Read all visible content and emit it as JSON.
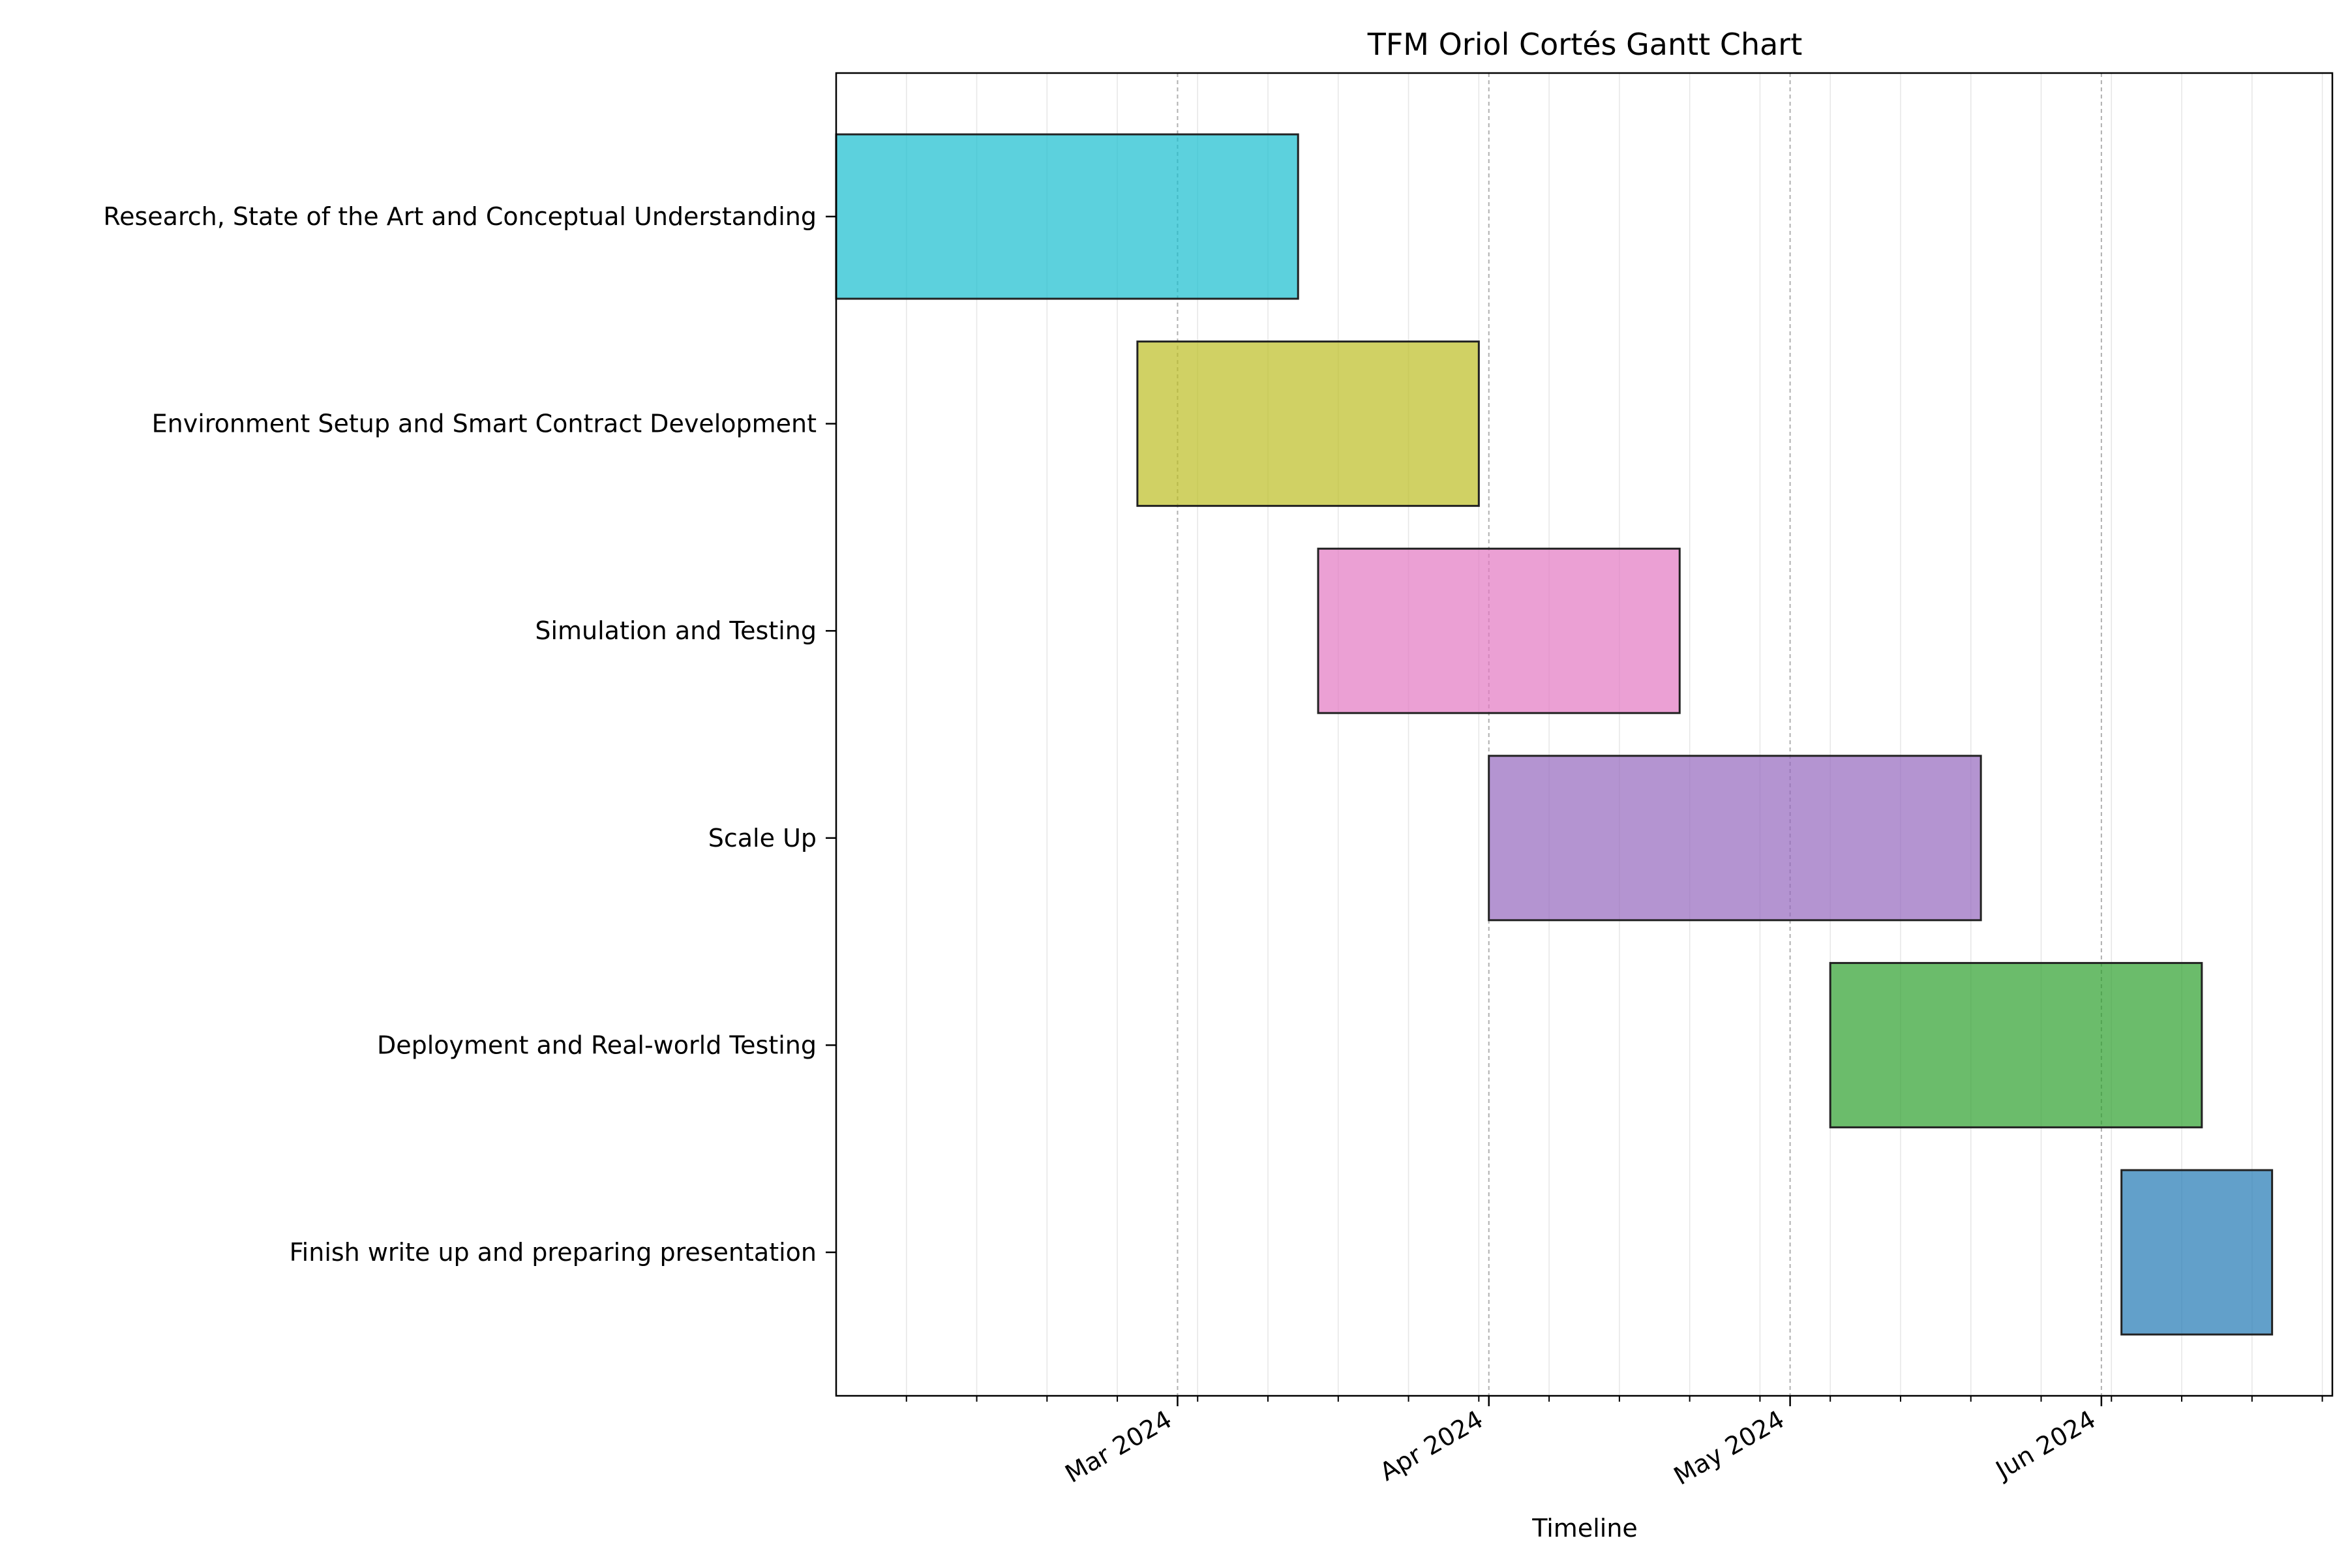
{
  "chart_data": {
    "type": "gantt",
    "title": "TFM Oriol Cortés Gantt Chart",
    "xlabel": "Timeline",
    "ylabel": "",
    "x_axis": {
      "scale": "date",
      "range": [
        "2024-01-27",
        "2024-06-24"
      ],
      "major_ticks": [
        {
          "date": "2024-03-01",
          "label": "Mar 2024"
        },
        {
          "date": "2024-04-01",
          "label": "Apr 2024"
        },
        {
          "date": "2024-05-01",
          "label": "May 2024"
        },
        {
          "date": "2024-06-01",
          "label": "Jun 2024"
        }
      ],
      "minor_ticks": [
        "2024-02-03",
        "2024-02-10",
        "2024-02-17",
        "2024-02-24",
        "2024-03-03",
        "2024-03-10",
        "2024-03-17",
        "2024-03-24",
        "2024-03-31",
        "2024-04-07",
        "2024-04-14",
        "2024-04-21",
        "2024-04-28",
        "2024-05-05",
        "2024-05-12",
        "2024-05-19",
        "2024-05-26",
        "2024-06-02",
        "2024-06-09",
        "2024-06-16",
        "2024-06-23"
      ]
    },
    "grid": {
      "major_x": "dashed",
      "minor_x": "faint"
    },
    "tasks": [
      {
        "name": "Research, State of the Art and Conceptual Understanding",
        "start": "2024-01-27",
        "end": "2024-03-13",
        "color": "#17becf"
      },
      {
        "name": "Environment Setup and Smart Contract Development",
        "start": "2024-02-26",
        "end": "2024-03-31",
        "color": "#bcbd22"
      },
      {
        "name": "Simulation and Testing",
        "start": "2024-03-15",
        "end": "2024-04-20",
        "color": "#e377c2"
      },
      {
        "name": "Scale Up",
        "start": "2024-04-01",
        "end": "2024-05-20",
        "color": "#9467bd"
      },
      {
        "name": "Deployment and Real-world Testing",
        "start": "2024-05-05",
        "end": "2024-06-11",
        "color": "#2ca02c"
      },
      {
        "name": "Finish write up and preparing presentation",
        "start": "2024-06-03",
        "end": "2024-06-18",
        "color": "#1f77b4"
      }
    ]
  }
}
